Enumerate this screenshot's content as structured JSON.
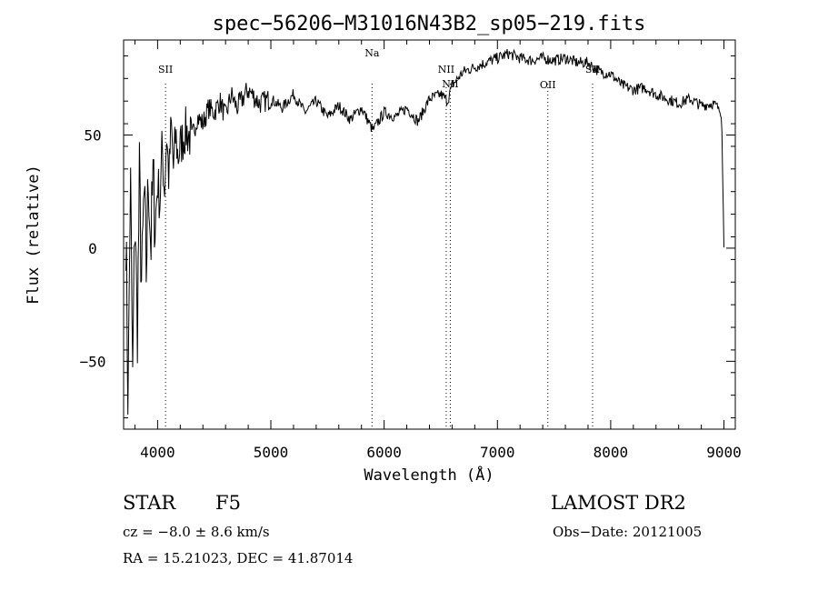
{
  "chart_data": {
    "type": "line",
    "title": "spec−56206−M31016N43B2_sp05−219.fits",
    "xlabel": "Wavelength (Å)",
    "ylabel": "Flux (relative)",
    "xlim": [
      3700,
      9100
    ],
    "ylim": [
      -80,
      92
    ],
    "x_ticks": [
      4000,
      5000,
      6000,
      7000,
      8000,
      9000
    ],
    "y_ticks": [
      -50,
      0,
      50
    ],
    "y_tick_labels": [
      "−50",
      "0",
      "50"
    ],
    "grid": false,
    "line_color": "#000000",
    "series": [
      {
        "x": [
          3720,
          3740,
          3760,
          3780,
          3800,
          3820,
          3840,
          3860,
          3880,
          3900,
          3920,
          3940,
          3960,
          3980,
          4000,
          4020,
          4040,
          4060,
          4080,
          4100,
          4120,
          4140,
          4160,
          4180,
          4200,
          4250,
          4300,
          4350,
          4400,
          4450,
          4500,
          4550,
          4600,
          4650,
          4700,
          4750,
          4800,
          4900,
          5000,
          5100,
          5200,
          5300,
          5400,
          5500,
          5600,
          5700,
          5800,
          5900,
          6000,
          6100,
          6200,
          6300,
          6400,
          6500,
          6560,
          6600,
          6700,
          6800,
          6900,
          7000,
          7100,
          7200,
          7300,
          7400,
          7500,
          7600,
          7700,
          7800,
          7900,
          8000,
          8100,
          8200,
          8300,
          8400,
          8500,
          8600,
          8700,
          8800,
          8900,
          8950,
          8980,
          9000
        ],
        "y": [
          10,
          -70,
          35,
          -60,
          20,
          -40,
          30,
          -20,
          25,
          -10,
          35,
          0,
          30,
          10,
          30,
          20,
          45,
          25,
          50,
          30,
          55,
          35,
          50,
          40,
          45,
          52,
          48,
          58,
          55,
          62,
          60,
          65,
          58,
          68,
          62,
          66,
          70,
          64,
          66,
          62,
          68,
          60,
          65,
          58,
          63,
          57,
          62,
          52,
          60,
          58,
          62,
          56,
          66,
          68,
          65,
          72,
          78,
          80,
          82,
          84,
          86,
          84,
          83,
          84,
          83,
          84,
          82,
          82,
          78,
          77,
          72,
          70,
          71,
          68,
          66,
          64,
          66,
          63,
          64,
          62,
          58,
          0
        ]
      }
    ],
    "line_markers": [
      {
        "label": "SII",
        "x": 4070
      },
      {
        "label": "Na",
        "x": 5893
      },
      {
        "label": "NII",
        "x": 6548
      },
      {
        "label": "NII",
        "x": 6584
      },
      {
        "label": "OII",
        "x": 7445
      },
      {
        "label": "SII",
        "x": 7840
      }
    ]
  },
  "footer": {
    "class_label": "STAR",
    "subclass": "F5",
    "survey": "LAMOST DR2",
    "cz": "cz = −8.0 ± 8.6 km/s",
    "obs_date": "Obs−Date: 20121005",
    "radec": "RA =  15.21023, DEC =  41.87014"
  }
}
